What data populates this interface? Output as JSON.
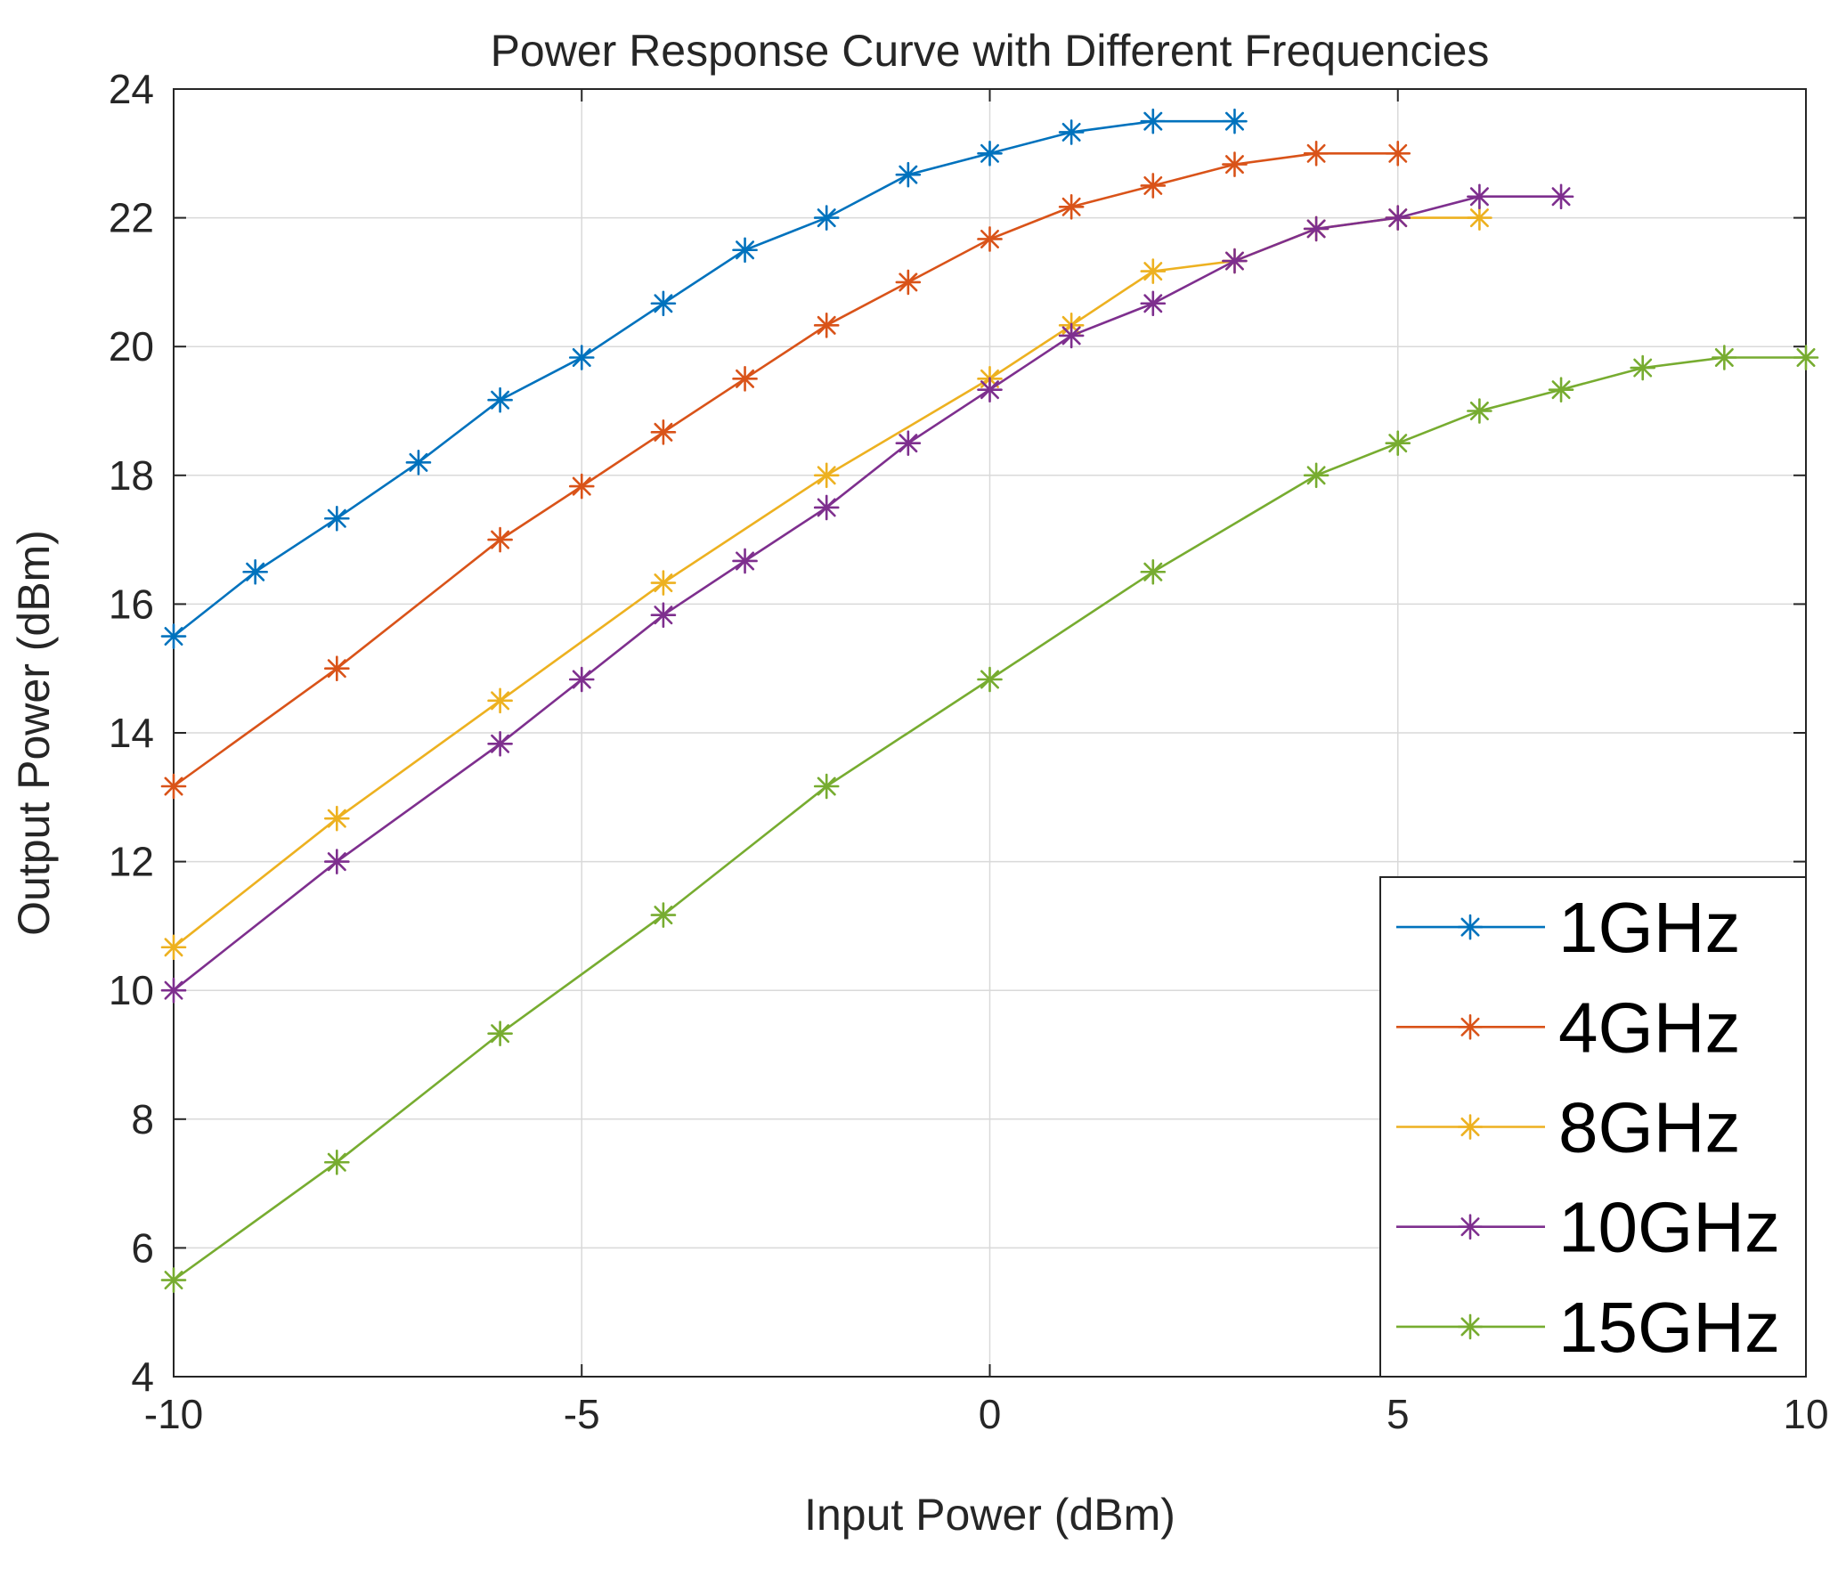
{
  "chart_data": {
    "type": "line",
    "title": "Power Response Curve with Different Frequencies",
    "xlabel": "Input Power (dBm)",
    "ylabel": "Output Power (dBm)",
    "xlim": [
      -10,
      10
    ],
    "ylim": [
      4,
      24
    ],
    "xticks": [
      -10,
      -5,
      0,
      5,
      10
    ],
    "yticks": [
      4,
      6,
      8,
      10,
      12,
      14,
      16,
      18,
      20,
      22,
      24
    ],
    "xtick_labels": [
      "-10",
      "-5",
      "0",
      "5",
      "10"
    ],
    "ytick_labels": [
      "4",
      "6",
      "8",
      "10",
      "12",
      "14",
      "16",
      "18",
      "20",
      "22",
      "24"
    ],
    "grid": true,
    "marker": "asterisk",
    "legend_position": "bottom-right",
    "series": [
      {
        "name": "1GHz",
        "color": "#0072BD",
        "x": [
          -10,
          -9,
          -8,
          -7,
          -6,
          -5,
          -4,
          -3,
          -2,
          -1,
          0,
          1,
          2,
          3
        ],
        "y": [
          15.5,
          16.5,
          17.33,
          18.2,
          19.17,
          19.83,
          20.67,
          21.5,
          22.0,
          22.67,
          23.0,
          23.33,
          23.5,
          23.5
        ]
      },
      {
        "name": "4GHz",
        "color": "#D95319",
        "x": [
          -10,
          -8,
          -6,
          -5,
          -4,
          -3,
          -2,
          -1,
          0,
          1,
          2,
          3,
          4,
          5
        ],
        "y": [
          13.17,
          15.0,
          17.0,
          17.83,
          18.67,
          19.5,
          20.33,
          21.0,
          21.67,
          22.17,
          22.5,
          22.83,
          23.0,
          23.0
        ]
      },
      {
        "name": "8GHz",
        "color": "#EDB120",
        "x": [
          -10,
          -8,
          -6,
          -4,
          -2,
          0,
          1,
          2,
          3,
          4,
          5,
          6
        ],
        "y": [
          10.67,
          12.67,
          14.5,
          16.33,
          18.0,
          19.5,
          20.33,
          21.17,
          21.33,
          21.83,
          22.0,
          22.0
        ]
      },
      {
        "name": "10GHz",
        "color": "#7E2F8E",
        "x": [
          -10,
          -8,
          -6,
          -5,
          -4,
          -3,
          -2,
          -1,
          0,
          1,
          2,
          3,
          4,
          5,
          6,
          7
        ],
        "y": [
          10.0,
          12.0,
          13.83,
          14.83,
          15.83,
          16.67,
          17.5,
          18.5,
          19.33,
          20.17,
          20.67,
          21.33,
          21.83,
          22.0,
          22.33,
          22.33
        ]
      },
      {
        "name": "15GHz",
        "color": "#77AC30",
        "x": [
          -10,
          -8,
          -6,
          -4,
          -2,
          0,
          2,
          4,
          5,
          6,
          7,
          8,
          9,
          10
        ],
        "y": [
          5.5,
          7.33,
          9.33,
          11.17,
          13.17,
          14.83,
          16.5,
          18.0,
          18.5,
          19.0,
          19.33,
          19.67,
          19.83,
          19.83
        ]
      }
    ]
  }
}
